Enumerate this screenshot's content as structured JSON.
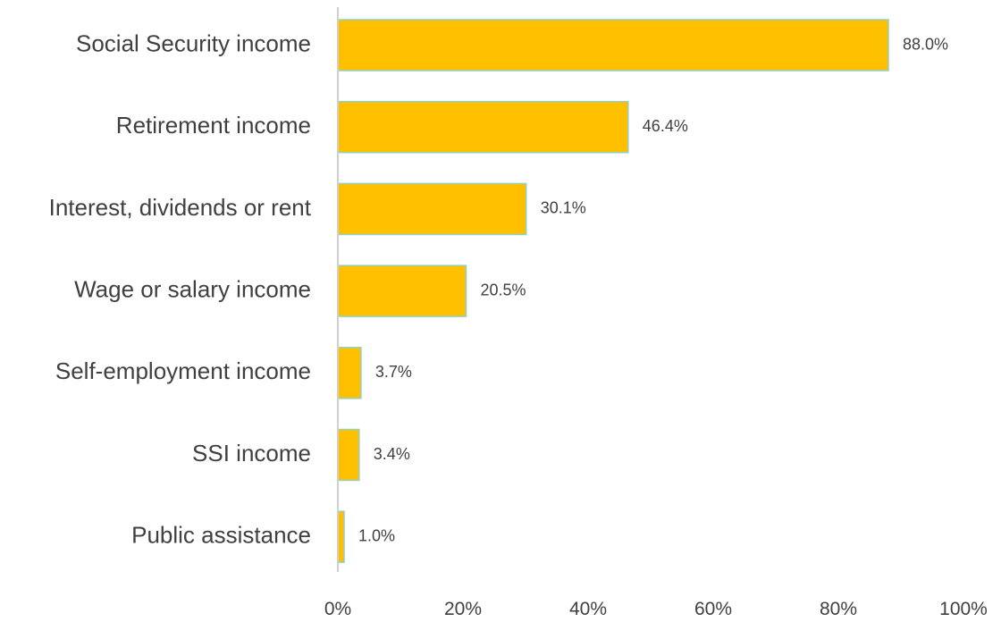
{
  "chart_data": {
    "type": "bar",
    "orientation": "horizontal",
    "title": "",
    "xlabel": "",
    "ylabel": "",
    "categories": [
      "Social Security income",
      "Retirement income",
      "Interest, dividends or rent",
      "Wage or salary income",
      "Self-employment income",
      "SSI income",
      "Public assistance"
    ],
    "values": [
      88.0,
      46.4,
      30.1,
      20.5,
      3.7,
      3.4,
      1.0
    ],
    "value_labels": [
      "88.0%",
      "46.4%",
      "30.1%",
      "20.5%",
      "3.7%",
      "3.4%",
      "1.0%"
    ],
    "xlim": [
      0,
      100
    ],
    "x_ticks": [
      0,
      20,
      40,
      60,
      80,
      100
    ],
    "x_tick_labels": [
      "0%",
      "20%",
      "40%",
      "60%",
      "80%",
      "100%"
    ],
    "grid": false,
    "legend": "none",
    "colors": {
      "bar_fill": "#FFC000",
      "bar_stroke": "#8FD1C3",
      "axis": "#D0D0D0",
      "text": "#404040"
    }
  }
}
